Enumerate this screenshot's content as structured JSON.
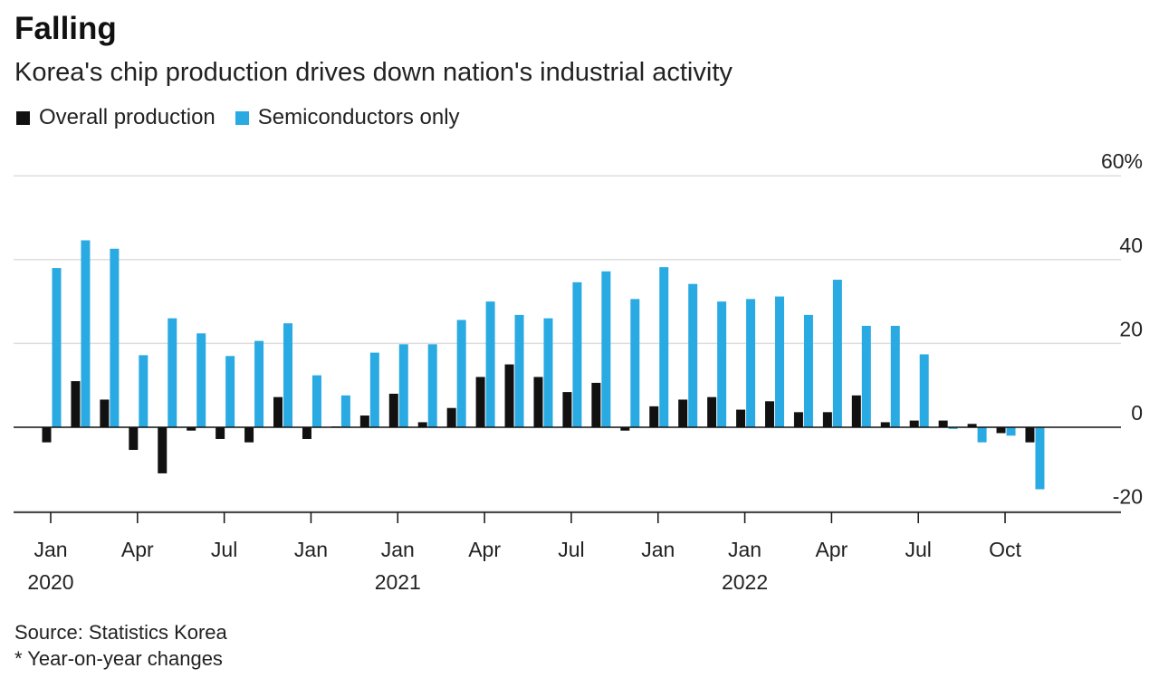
{
  "title": "Falling",
  "subtitle": "Korea's chip production drives down nation's industrial activity",
  "legend": [
    {
      "label": "Overall production",
      "color": "#111111"
    },
    {
      "label": "Semiconductors only",
      "color": "#2AAAE2"
    }
  ],
  "footer": {
    "source": "Source: Statistics Korea",
    "note": "* Year-on-year changes"
  },
  "chart_data": {
    "type": "bar",
    "x_tick_labels": [
      {
        "index": 0,
        "label": "Jan",
        "year": "2020"
      },
      {
        "index": 3,
        "label": "Apr",
        "year": ""
      },
      {
        "index": 6,
        "label": "Jul",
        "year": ""
      },
      {
        "index": 9,
        "label": "Jan",
        "year": ""
      },
      {
        "index": 12,
        "label": "Jan",
        "year": "2021"
      },
      {
        "index": 15,
        "label": "Apr",
        "year": ""
      },
      {
        "index": 18,
        "label": "Jul",
        "year": ""
      },
      {
        "index": 21,
        "label": "Jan",
        "year": ""
      },
      {
        "index": 24,
        "label": "Jan",
        "year": "2022"
      },
      {
        "index": 27,
        "label": "Apr",
        "year": ""
      },
      {
        "index": 30,
        "label": "Jul",
        "year": ""
      },
      {
        "index": 33,
        "label": "Oct",
        "year": ""
      }
    ],
    "y_ticks": [
      {
        "value": 60,
        "label": "60%"
      },
      {
        "value": 40,
        "label": "40"
      },
      {
        "value": 20,
        "label": "20"
      },
      {
        "value": 0,
        "label": "0"
      },
      {
        "value": -20,
        "label": "-20"
      }
    ],
    "ylim": [
      -20,
      60
    ],
    "grid": true,
    "series": [
      {
        "name": "Overall production",
        "color": "#111111",
        "values": [
          -3.6,
          11,
          6.6,
          -5.4,
          -11,
          -0.8,
          -2.8,
          -3.6,
          7.2,
          -2.8,
          0.2,
          2.8,
          8,
          1.2,
          4.6,
          12,
          15,
          12,
          8.4,
          10.6,
          -0.8,
          5,
          6.6,
          7.2,
          4.2,
          6.2,
          3.6,
          3.6,
          7.6,
          1.2,
          1.6,
          1.6,
          0.8,
          -1.4,
          -3.6
        ]
      },
      {
        "name": "Semiconductors only",
        "color": "#2AAAE2",
        "values": [
          38,
          44.6,
          42.6,
          17.2,
          26,
          22.4,
          17,
          20.6,
          24.8,
          12.4,
          7.6,
          17.8,
          19.8,
          19.8,
          25.6,
          30,
          26.8,
          26,
          34.6,
          37.2,
          30.6,
          38.2,
          34.2,
          30,
          30.6,
          31.2,
          26.8,
          35.2,
          24.2,
          24.2,
          17.4,
          -0.4,
          -3.6,
          -2,
          -14.8
        ]
      }
    ]
  }
}
